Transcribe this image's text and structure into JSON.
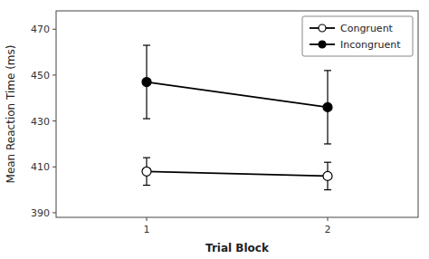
{
  "chart_data": {
    "type": "line",
    "xlabel": "Trial Block",
    "ylabel": "Mean Reaction Time (ms)",
    "x": [
      1,
      2
    ],
    "series": [
      {
        "name": "Congruent",
        "color": "black",
        "marker": "circle-open",
        "values": [
          408,
          406
        ],
        "errors": [
          6,
          6
        ]
      },
      {
        "name": "Incongruent",
        "color": "black",
        "marker": "circle",
        "values": [
          447,
          436
        ],
        "errors": [
          16,
          16
        ]
      }
    ],
    "xlim": [
      0.5,
      2.5
    ],
    "xticks": [
      1,
      2
    ],
    "ylim": [
      388,
      478
    ],
    "yticks": [
      390,
      410,
      430,
      450,
      470
    ],
    "grid": false,
    "legend": "upper right"
  }
}
